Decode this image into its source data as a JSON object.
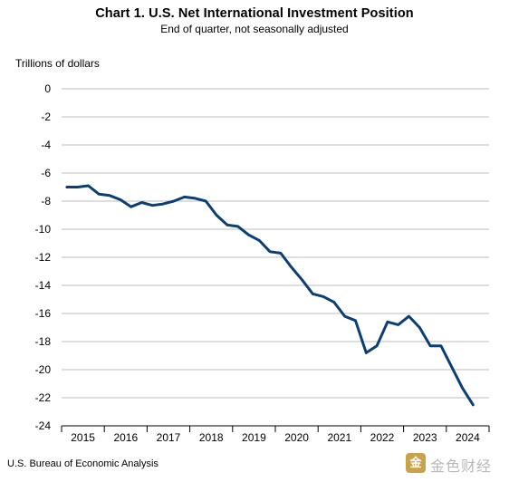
{
  "chart_data": {
    "type": "line",
    "title": "Chart 1. U.S. Net International Investment Position",
    "subtitle": "End of quarter, not seasonally adjusted",
    "ylabel": "Trillions of dollars",
    "xlabel": "",
    "ylim": [
      -24,
      0
    ],
    "yticks": [
      0,
      -2,
      -4,
      -6,
      -8,
      -10,
      -12,
      -14,
      -16,
      -18,
      -20,
      -22,
      -24
    ],
    "x_tick_labels": [
      "2015",
      "2016",
      "2017",
      "2018",
      "2019",
      "2020",
      "2021",
      "2022",
      "2023",
      "2024"
    ],
    "grid": true,
    "line_color": "#0b3f73",
    "series": [
      {
        "values": [
          -7.0,
          -7.0,
          -6.9,
          -7.5,
          -7.6,
          -7.9,
          -8.4,
          -8.1,
          -8.3,
          -8.2,
          -8.0,
          -7.7,
          -7.8,
          -8.0,
          -9.0,
          -9.7,
          -9.8,
          -10.4,
          -10.8,
          -11.6,
          -11.7,
          -12.7,
          -13.6,
          -14.6,
          -14.8,
          -15.2,
          -16.2,
          -16.5,
          -18.8,
          -18.3,
          -16.6,
          -16.8,
          -16.2,
          -17.0,
          -18.3,
          -18.3,
          -19.8,
          -21.3,
          -22.5
        ]
      }
    ]
  },
  "source": "U.S. Bureau of Economic Analysis",
  "watermark": {
    "logo_glyph": "金",
    "text": "金色财经"
  }
}
